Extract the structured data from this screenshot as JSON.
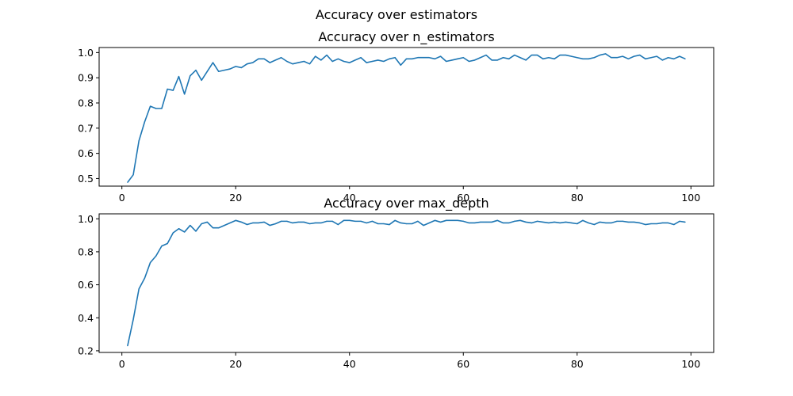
{
  "figure_title": "Accuracy over estimators",
  "line_color": "#1f77b4",
  "chart_data": [
    {
      "type": "line",
      "title": "Accuracy over n_estimators",
      "xlabel": "",
      "ylabel": "",
      "grid": false,
      "xlim": [
        -4,
        104
      ],
      "ylim": [
        0.47,
        1.02
      ],
      "xticks": [
        0,
        20,
        40,
        60,
        80,
        100
      ],
      "yticks": [
        0.5,
        0.6,
        0.7,
        0.8,
        0.9,
        1.0
      ],
      "ytick_labels": [
        "0.5",
        "0.6",
        "0.7",
        "0.8",
        "0.9",
        "1.0"
      ],
      "series": [
        {
          "x": [
            1,
            2,
            3,
            4,
            5,
            6,
            7,
            8,
            9,
            10,
            11,
            12,
            13,
            14,
            15,
            16,
            17,
            18,
            19,
            20,
            21,
            22,
            23,
            24,
            25,
            26,
            27,
            28,
            29,
            30,
            31,
            32,
            33,
            34,
            35,
            36,
            37,
            38,
            39,
            40,
            41,
            42,
            43,
            44,
            45,
            46,
            47,
            48,
            49,
            50,
            51,
            52,
            53,
            54,
            55,
            56,
            57,
            58,
            59,
            60,
            61,
            62,
            63,
            64,
            65,
            66,
            67,
            68,
            69,
            70,
            71,
            72,
            73,
            74,
            75,
            76,
            77,
            78,
            79,
            80,
            81,
            82,
            83,
            84,
            85,
            86,
            87,
            88,
            89,
            90,
            91,
            92,
            93,
            94,
            95,
            96,
            97,
            98,
            99
          ],
          "values": [
            0.485,
            0.515,
            0.65,
            0.725,
            0.787,
            0.778,
            0.778,
            0.855,
            0.85,
            0.905,
            0.835,
            0.908,
            0.93,
            0.89,
            0.925,
            0.96,
            0.925,
            0.93,
            0.935,
            0.945,
            0.94,
            0.955,
            0.96,
            0.975,
            0.975,
            0.96,
            0.97,
            0.98,
            0.965,
            0.955,
            0.96,
            0.965,
            0.955,
            0.985,
            0.97,
            0.99,
            0.965,
            0.975,
            0.965,
            0.96,
            0.97,
            0.98,
            0.96,
            0.965,
            0.97,
            0.965,
            0.975,
            0.98,
            0.95,
            0.975,
            0.975,
            0.98,
            0.98,
            0.98,
            0.975,
            0.985,
            0.965,
            0.97,
            0.975,
            0.98,
            0.965,
            0.97,
            0.98,
            0.99,
            0.97,
            0.97,
            0.98,
            0.975,
            0.99,
            0.98,
            0.97,
            0.99,
            0.99,
            0.975,
            0.98,
            0.975,
            0.99,
            0.99,
            0.985,
            0.98,
            0.975,
            0.975,
            0.98,
            0.99,
            0.995,
            0.98,
            0.98,
            0.985,
            0.975,
            0.985,
            0.99,
            0.975,
            0.98,
            0.985,
            0.97,
            0.98,
            0.975,
            0.985,
            0.975
          ]
        }
      ]
    },
    {
      "type": "line",
      "title": "Accuracy over max_depth",
      "xlabel": "",
      "ylabel": "",
      "grid": false,
      "xlim": [
        -4,
        104
      ],
      "ylim": [
        0.19,
        1.03
      ],
      "xticks": [
        0,
        20,
        40,
        60,
        80,
        100
      ],
      "yticks": [
        0.2,
        0.4,
        0.6,
        0.8,
        1.0
      ],
      "ytick_labels": [
        "0.2",
        "0.4",
        "0.6",
        "0.8",
        "1.0"
      ],
      "series": [
        {
          "x": [
            1,
            2,
            3,
            4,
            5,
            6,
            7,
            8,
            9,
            10,
            11,
            12,
            13,
            14,
            15,
            16,
            17,
            18,
            19,
            20,
            21,
            22,
            23,
            24,
            25,
            26,
            27,
            28,
            29,
            30,
            31,
            32,
            33,
            34,
            35,
            36,
            37,
            38,
            39,
            40,
            41,
            42,
            43,
            44,
            45,
            46,
            47,
            48,
            49,
            50,
            51,
            52,
            53,
            54,
            55,
            56,
            57,
            58,
            59,
            60,
            61,
            62,
            63,
            64,
            65,
            66,
            67,
            68,
            69,
            70,
            71,
            72,
            73,
            74,
            75,
            76,
            77,
            78,
            79,
            80,
            81,
            82,
            83,
            84,
            85,
            86,
            87,
            88,
            89,
            90,
            91,
            92,
            93,
            94,
            95,
            96,
            97,
            98,
            99
          ],
          "values": [
            0.23,
            0.39,
            0.575,
            0.64,
            0.735,
            0.775,
            0.835,
            0.85,
            0.915,
            0.94,
            0.92,
            0.96,
            0.925,
            0.97,
            0.98,
            0.945,
            0.945,
            0.96,
            0.975,
            0.99,
            0.98,
            0.965,
            0.975,
            0.975,
            0.98,
            0.96,
            0.97,
            0.985,
            0.985,
            0.975,
            0.98,
            0.98,
            0.97,
            0.975,
            0.975,
            0.985,
            0.985,
            0.965,
            0.99,
            0.99,
            0.985,
            0.985,
            0.975,
            0.985,
            0.97,
            0.97,
            0.965,
            0.99,
            0.975,
            0.97,
            0.97,
            0.985,
            0.96,
            0.975,
            0.99,
            0.98,
            0.99,
            0.99,
            0.99,
            0.985,
            0.975,
            0.975,
            0.98,
            0.98,
            0.98,
            0.99,
            0.975,
            0.975,
            0.985,
            0.99,
            0.98,
            0.975,
            0.985,
            0.98,
            0.975,
            0.98,
            0.975,
            0.98,
            0.975,
            0.97,
            0.99,
            0.975,
            0.965,
            0.98,
            0.975,
            0.975,
            0.985,
            0.985,
            0.98,
            0.98,
            0.975,
            0.965,
            0.97,
            0.97,
            0.975,
            0.975,
            0.965,
            0.985,
            0.98
          ]
        }
      ]
    }
  ]
}
